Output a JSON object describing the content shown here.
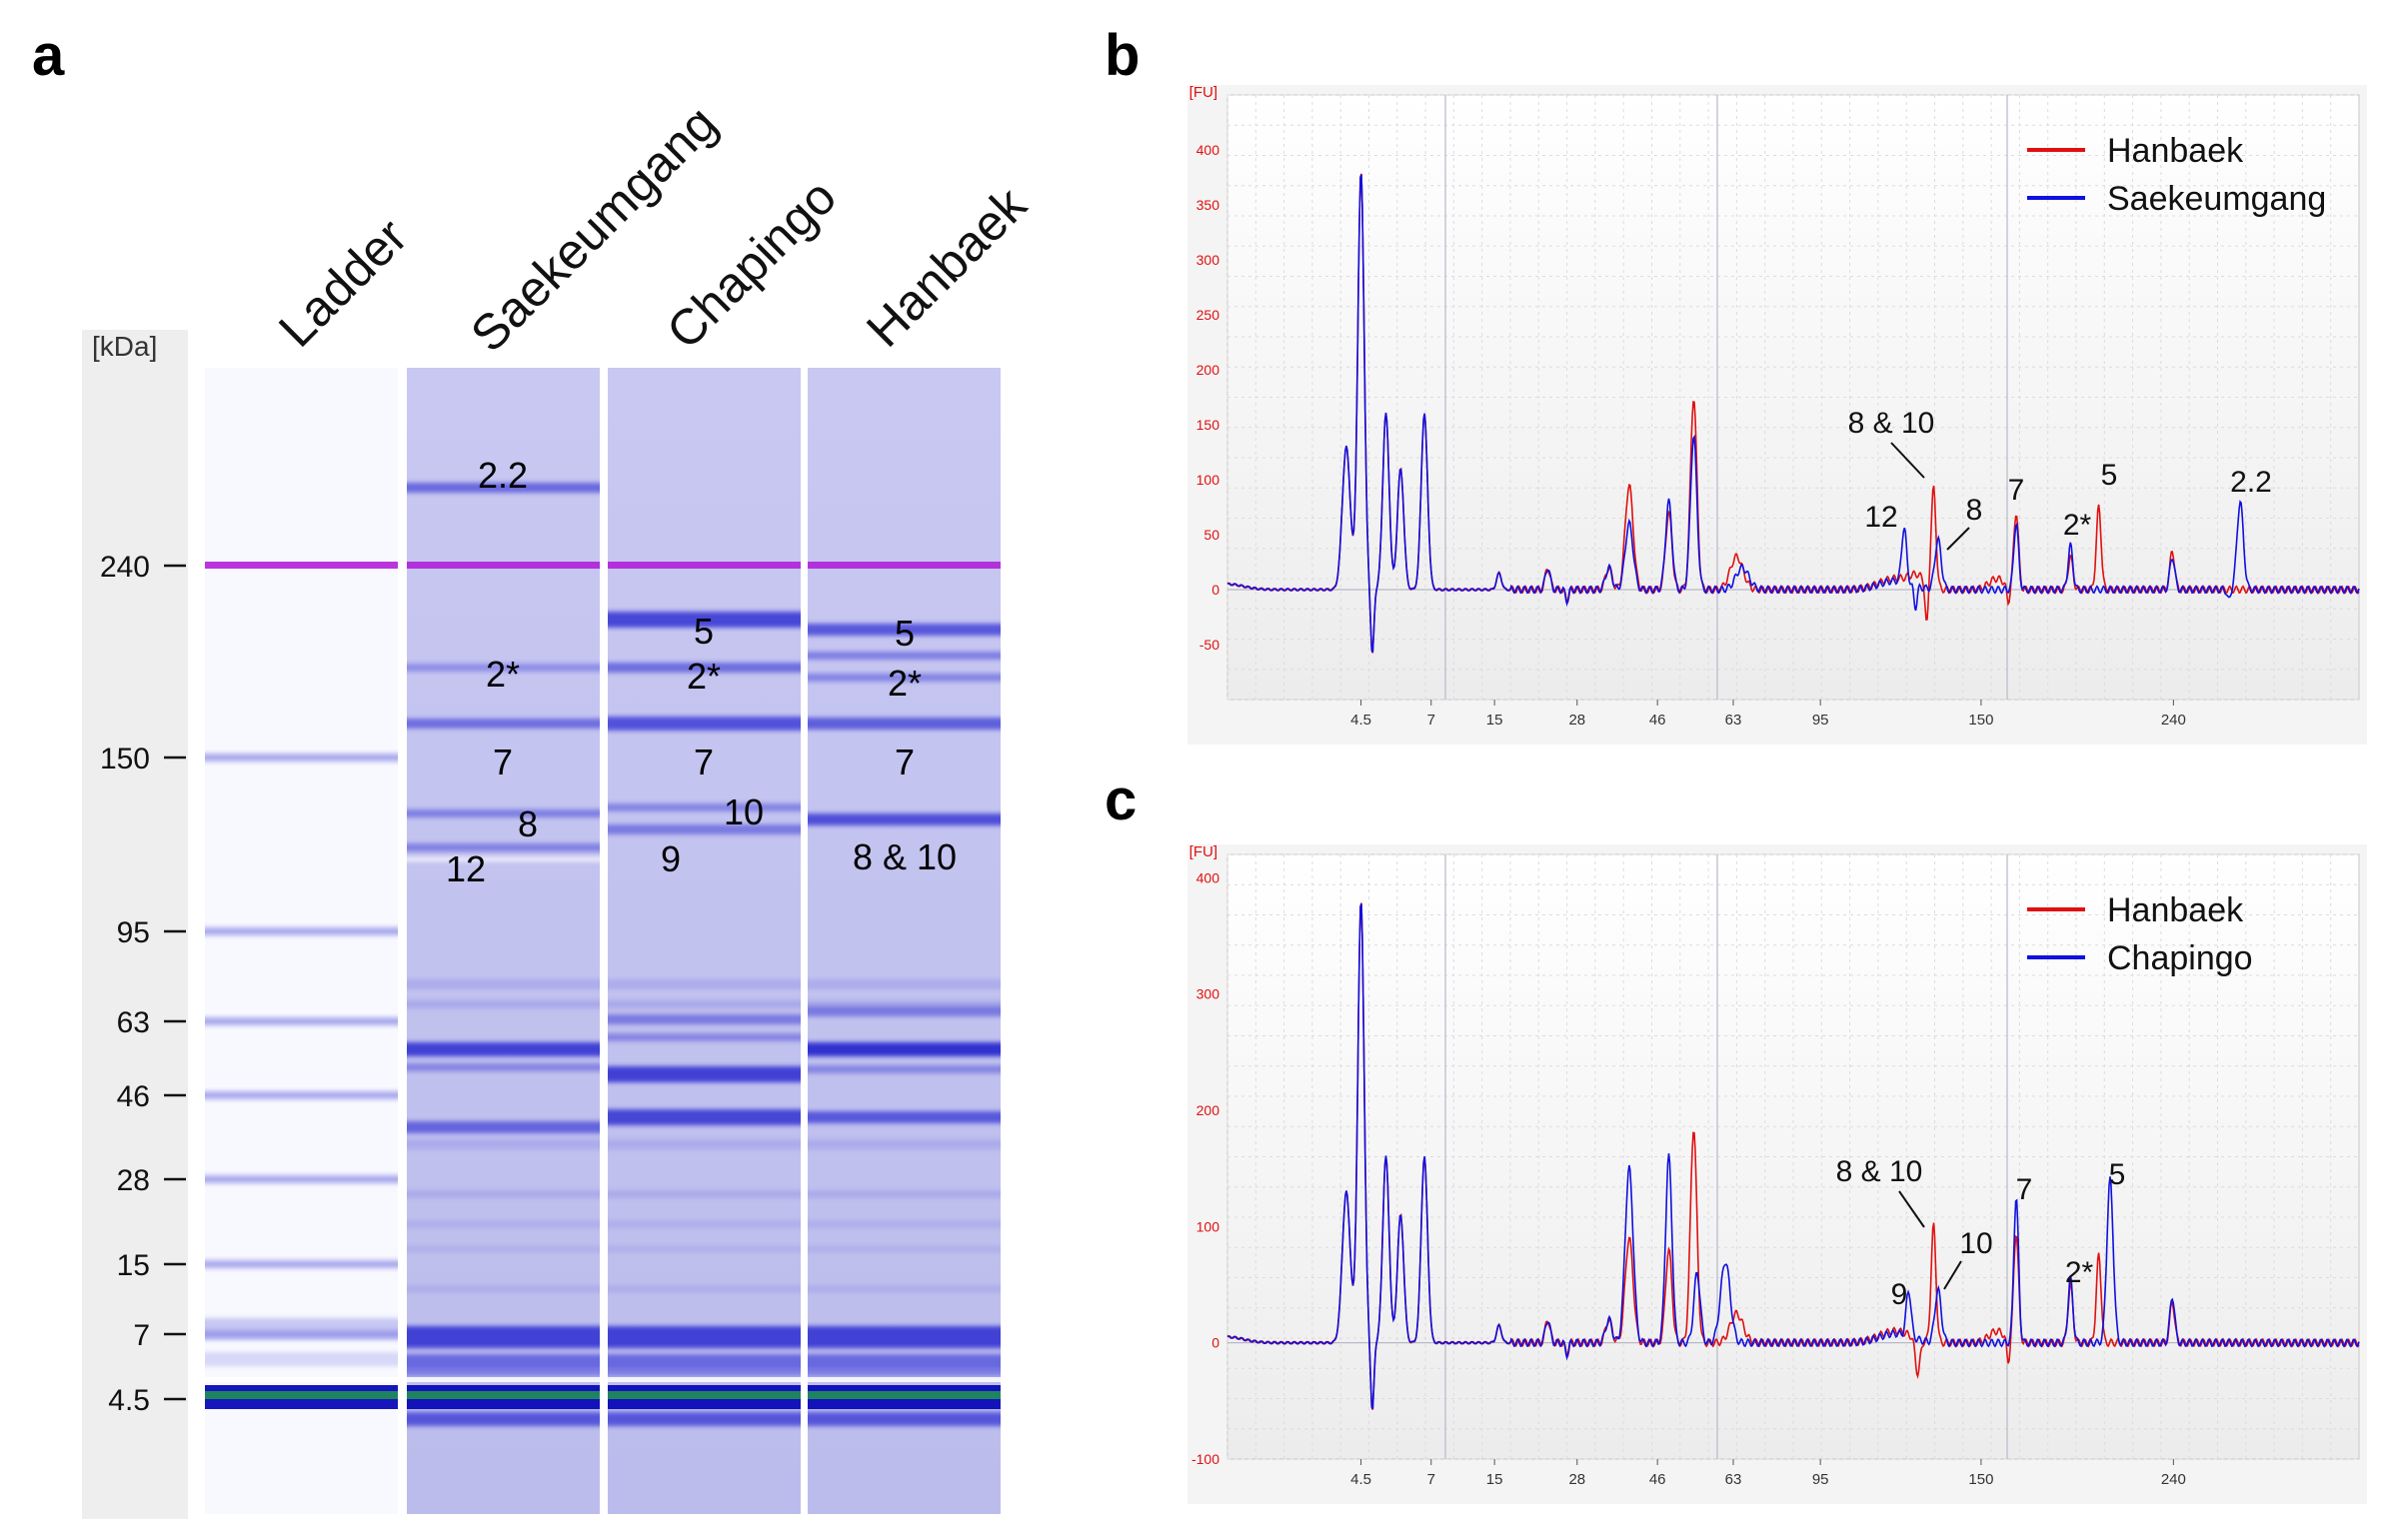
{
  "panels": {
    "a": "a",
    "b": "b",
    "c": "c"
  },
  "chart_data": [
    {
      "type": "gel",
      "panel": "a",
      "unit_label": "[kDa]",
      "lanes": [
        "Ladder",
        "Saekeumgang",
        "Chapingo",
        "Hanbaek"
      ],
      "ladder_markers": [
        {
          "label": "240",
          "kda": 240
        },
        {
          "label": "150",
          "kda": 150
        },
        {
          "label": "95",
          "kda": 95
        },
        {
          "label": "63",
          "kda": 63
        },
        {
          "label": "46",
          "kda": 46
        },
        {
          "label": "28",
          "kda": 28
        },
        {
          "label": "15",
          "kda": 15
        },
        {
          "label": "7",
          "kda": 7
        },
        {
          "label": "4.5",
          "kda": 4.5
        }
      ],
      "band_labels": [
        {
          "lane": "Saekeumgang",
          "label": "2.2",
          "kda": 270
        },
        {
          "lane": "Saekeumgang",
          "label": "2*",
          "kda": 195
        },
        {
          "lane": "Saekeumgang",
          "label": "7",
          "kda": 150
        },
        {
          "lane": "Saekeumgang",
          "label": "8",
          "kda": 128
        },
        {
          "lane": "Saekeumgang",
          "label": "12",
          "kda": 116
        },
        {
          "lane": "Chapingo",
          "label": "5",
          "kda": 213
        },
        {
          "lane": "Chapingo",
          "label": "2*",
          "kda": 195
        },
        {
          "lane": "Chapingo",
          "label": "7",
          "kda": 150
        },
        {
          "lane": "Chapingo",
          "label": "10",
          "kda": 128
        },
        {
          "lane": "Chapingo",
          "label": "9",
          "kda": 118
        },
        {
          "lane": "Hanbaek",
          "label": "5",
          "kda": 213
        },
        {
          "lane": "Hanbaek",
          "label": "2*",
          "kda": 195
        },
        {
          "lane": "Hanbaek",
          "label": "7",
          "kda": 150
        },
        {
          "lane": "Hanbaek",
          "label": "8 & 10",
          "kda": 123
        }
      ]
    },
    {
      "type": "line",
      "panel": "b",
      "y_unit": "[FU]",
      "ylim": [
        -100,
        450
      ],
      "y_ticks": [
        "400",
        "350",
        "300",
        "250",
        "200",
        "150",
        "100",
        "50",
        "0",
        "-50"
      ],
      "x_ticks": [
        "4.5",
        "7",
        "15",
        "28",
        "46",
        "63",
        "95",
        "150",
        "240"
      ],
      "series": [
        {
          "name": "Hanbaek",
          "color": "#e01010"
        },
        {
          "name": "Saekeumgang",
          "color": "#1010e0"
        }
      ],
      "annotations": [
        "8 & 10",
        "12",
        "8",
        "7",
        "2*",
        "5",
        "2.2"
      ]
    },
    {
      "type": "line",
      "panel": "c",
      "y_unit": "[FU]",
      "ylim": [
        -100,
        420
      ],
      "y_ticks": [
        "400",
        "300",
        "200",
        "100",
        "0",
        "-100"
      ],
      "x_ticks": [
        "4.5",
        "7",
        "15",
        "28",
        "46",
        "63",
        "95",
        "150",
        "240"
      ],
      "series": [
        {
          "name": "Hanbaek",
          "color": "#e01010"
        },
        {
          "name": "Chapingo",
          "color": "#1010e0"
        }
      ],
      "annotations": [
        "8 & 10",
        "10",
        "9",
        "7",
        "2*",
        "5"
      ]
    }
  ]
}
